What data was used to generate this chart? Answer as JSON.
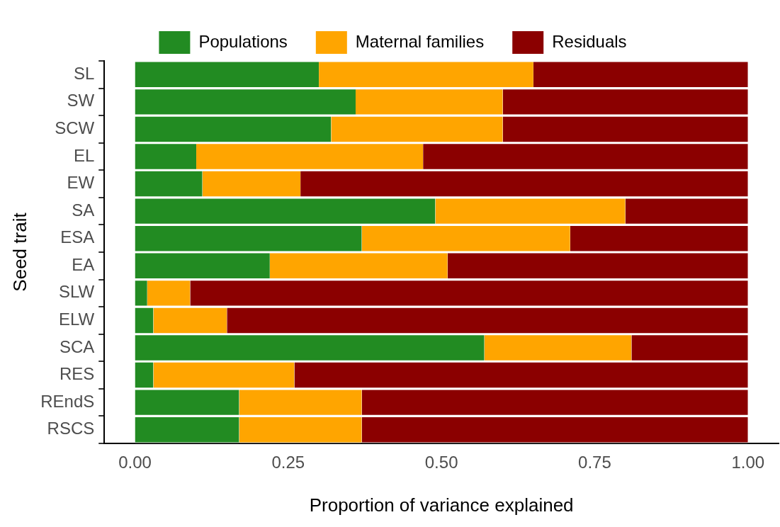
{
  "chart_data": {
    "type": "bar",
    "orientation": "horizontal",
    "stacked": true,
    "xlabel": "Proportion of variance explained",
    "ylabel": "Seed trait",
    "categories": [
      "SL",
      "SW",
      "SCW",
      "EL",
      "EW",
      "SA",
      "ESA",
      "EA",
      "SLW",
      "ELW",
      "SCA",
      "RES",
      "REndS",
      "RSCS"
    ],
    "series": [
      {
        "name": "Populations",
        "color": "#228b22",
        "values": [
          0.3,
          0.36,
          0.32,
          0.1,
          0.11,
          0.49,
          0.37,
          0.22,
          0.02,
          0.03,
          0.57,
          0.03,
          0.17,
          0.17
        ]
      },
      {
        "name": "Maternal families",
        "color": "#ffa500",
        "values": [
          0.35,
          0.24,
          0.28,
          0.37,
          0.16,
          0.31,
          0.34,
          0.29,
          0.07,
          0.12,
          0.24,
          0.23,
          0.2,
          0.2
        ]
      },
      {
        "name": "Residuals",
        "color": "#8b0000",
        "values": [
          0.35,
          0.4,
          0.4,
          0.53,
          0.73,
          0.2,
          0.29,
          0.49,
          0.91,
          0.85,
          0.19,
          0.74,
          0.63,
          0.63
        ]
      }
    ],
    "xlim": [
      -0.05,
      1.05
    ],
    "xticks": [
      {
        "value": 0,
        "label": "0.00"
      },
      {
        "value": 0.25,
        "label": "0.25"
      },
      {
        "value": 0.5,
        "label": "0.50"
      },
      {
        "value": 0.75,
        "label": "0.75"
      },
      {
        "value": 1,
        "label": "1.00"
      }
    ],
    "legend": "top",
    "grid": false
  }
}
